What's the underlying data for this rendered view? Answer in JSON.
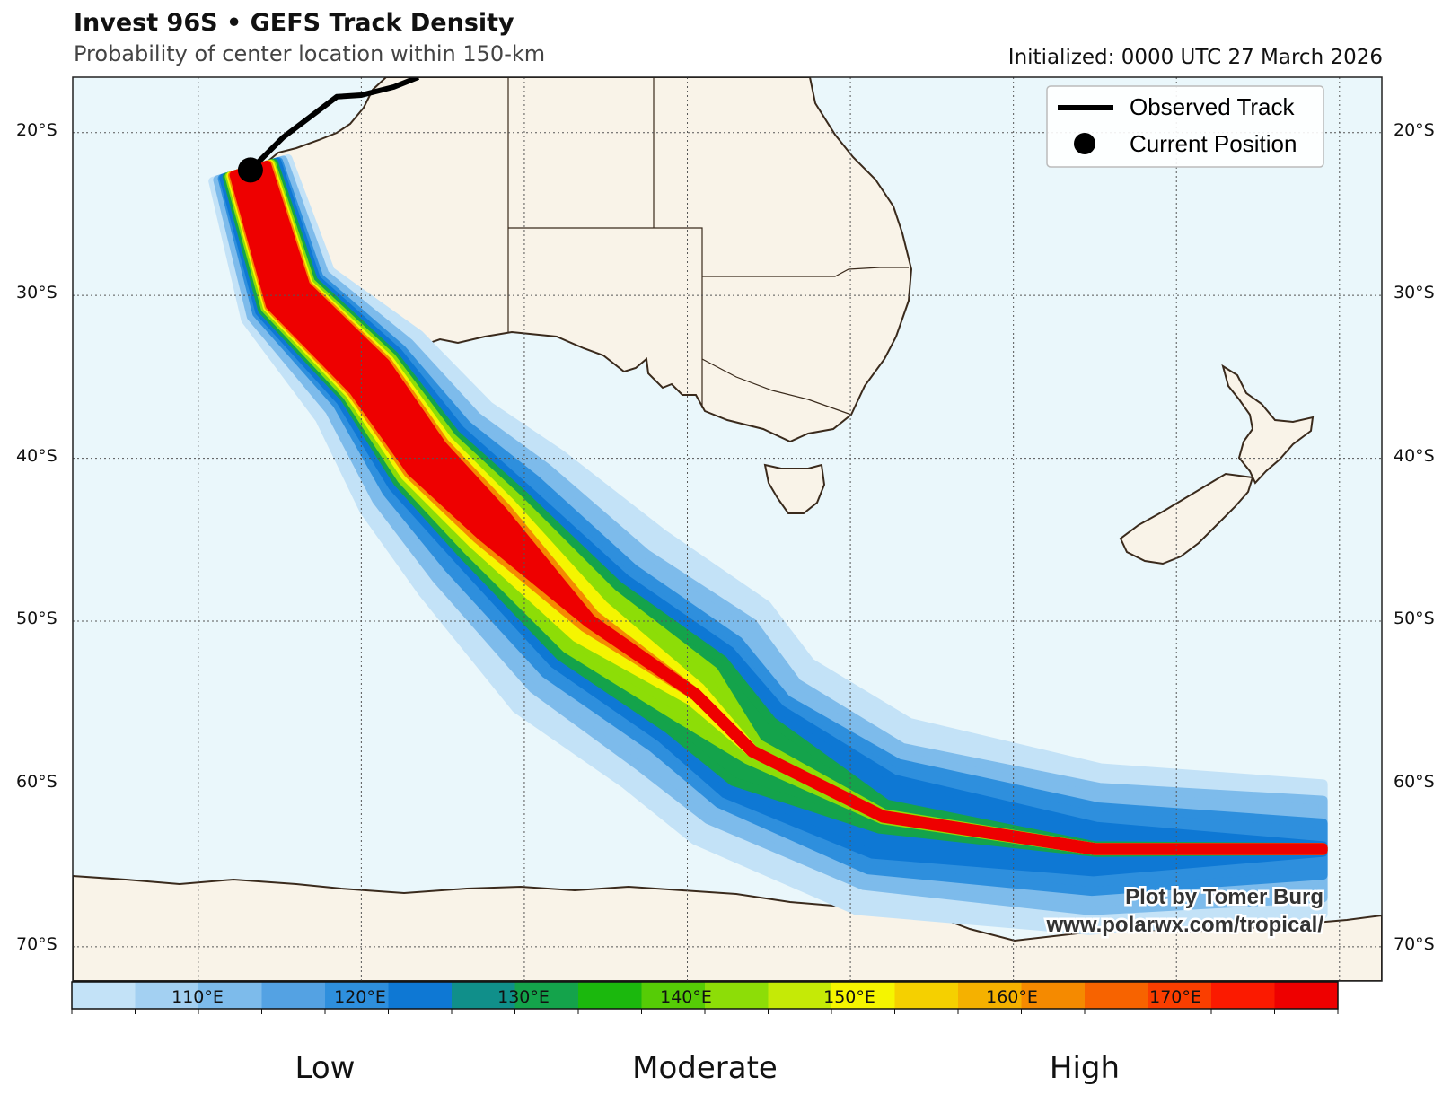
{
  "header": {
    "title": "Invest 96S • GEFS Track Density",
    "subtitle": "Probability of center location within 150-km",
    "initialized": "Initialized: 0000 UTC 27 March 2026"
  },
  "map": {
    "ocean_color": "#eaf7fb",
    "land_color": "#f9f3e8",
    "coast_color": "#3a2a1c",
    "lat_labels": [
      "20°S",
      "30°S",
      "40°S",
      "50°S",
      "60°S",
      "70°S"
    ],
    "lon_labels": [
      "110°E",
      "120°E",
      "130°E",
      "140°E",
      "150°E",
      "160°E",
      "170°E"
    ]
  },
  "legend": {
    "observed_track": "Observed Track",
    "current_position": "Current Position"
  },
  "credit": {
    "author": "Plot by Tomer Burg",
    "url": "www.polarwx.com/tropical/"
  },
  "colorbar": {
    "colors": [
      "#c3e2f7",
      "#a3d0f2",
      "#7dbbeb",
      "#54a2e3",
      "#2e8fdd",
      "#0e78d4",
      "#108f8a",
      "#14a34b",
      "#1bb80d",
      "#56cc06",
      "#8ddd07",
      "#c5ea06",
      "#f5f500",
      "#f5d000",
      "#f5b100",
      "#f58a00",
      "#f76300",
      "#fa3e00",
      "#fb1a00",
      "#ee0000"
    ],
    "labels": [
      "Low",
      "Moderate",
      "High"
    ]
  },
  "forecast_track": {
    "axis_lon": [
      113.2,
      115.5,
      120.5,
      124,
      128,
      134,
      140.5,
      144,
      152,
      165,
      179
    ],
    "axis_lat": [
      -22.3,
      -30,
      -35,
      -40,
      -44,
      -50,
      -54.5,
      -58,
      -62,
      -64,
      -64
    ],
    "levels": [
      {
        "color": "#c3e2f7",
        "w": [
          2.4,
          3,
          4,
          5,
          6,
          7,
          7,
          6.5,
          6,
          5,
          4
        ]
      },
      {
        "color": "#7dbbeb",
        "w": [
          2.1,
          2.6,
          3.2,
          4,
          4.8,
          5.4,
          5.6,
          5,
          4.4,
          3.8,
          3
        ]
      },
      {
        "color": "#2e8fdd",
        "w": [
          1.8,
          2.2,
          2.6,
          3.2,
          3.8,
          4.2,
          4.2,
          3.8,
          3.4,
          2.6,
          1.6
        ]
      },
      {
        "color": "#0e78d4",
        "w": [
          1.7,
          2,
          2.3,
          2.7,
          3,
          3.4,
          3.4,
          3.1,
          2.4,
          1.4,
          0.2
        ]
      },
      {
        "color": "#14a34b",
        "w": [
          1.5,
          1.8,
          2,
          2.3,
          2.6,
          2.8,
          2.7,
          2.2,
          0.8,
          0.2,
          0.1
        ]
      },
      {
        "color": "#8ddd07",
        "w": [
          1.35,
          1.6,
          1.8,
          2,
          2.2,
          2.2,
          1.8,
          0.6,
          0.2,
          0.1,
          0.1
        ]
      },
      {
        "color": "#f5f500",
        "w": [
          1.25,
          1.45,
          1.6,
          1.7,
          1.7,
          1.3,
          0.5,
          0.1,
          0.1,
          0.1,
          0.1
        ]
      },
      {
        "color": "#f58a00",
        "w": [
          1.15,
          1.35,
          1.45,
          1.45,
          1.3,
          0.5,
          0.1,
          0.1,
          0.1,
          0.1,
          0.1
        ]
      },
      {
        "color": "#ee0000",
        "w": [
          1.05,
          1.25,
          1.3,
          1.25,
          1.0,
          0.15,
          0.1,
          0.1,
          0.1,
          0.1,
          0.1
        ]
      }
    ]
  },
  "observed_track": {
    "lon": [
      113.2,
      115.2,
      118.5,
      120,
      122,
      123.5
    ],
    "lat": [
      -22.3,
      -20.3,
      -17.8,
      -17.7,
      -17.2,
      -16.6
    ]
  },
  "current_position": {
    "lon": 113.2,
    "lat": -22.3
  }
}
